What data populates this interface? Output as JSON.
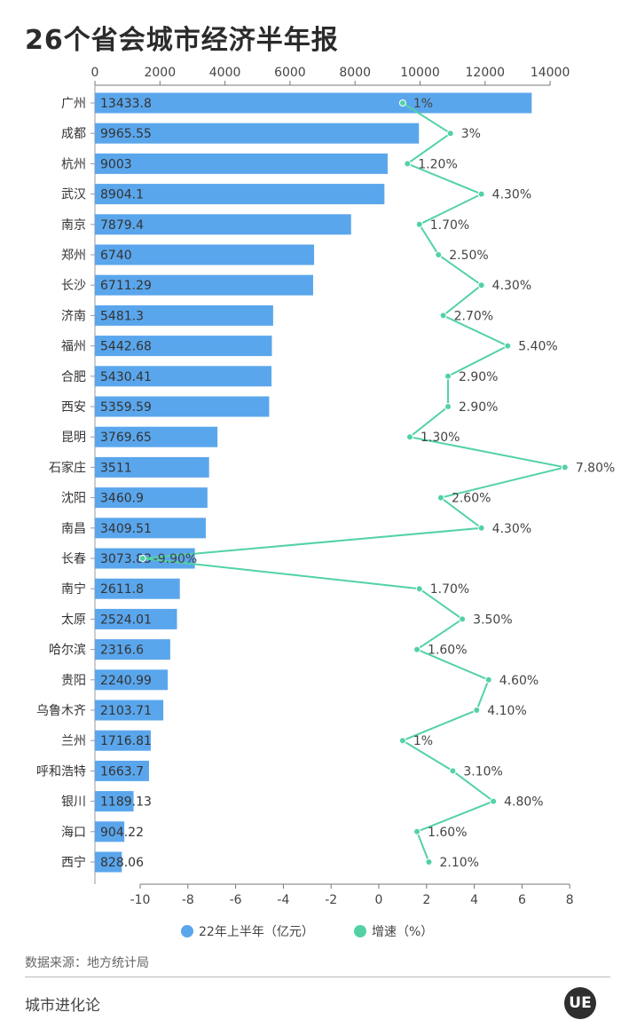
{
  "title": "26个省会城市经济半年报",
  "source": "数据来源：地方统计局",
  "footer": "城市进化论",
  "logo_text": "UE",
  "colors": {
    "bar": "#5aa6ec",
    "line": "#52d2a4"
  },
  "chart_data": {
    "type": "bar",
    "orientation": "horizontal",
    "categories": [
      "广州",
      "成都",
      "杭州",
      "武汉",
      "南京",
      "郑州",
      "长沙",
      "济南",
      "福州",
      "合肥",
      "西安",
      "昆明",
      "石家庄",
      "沈阳",
      "南昌",
      "长春",
      "南宁",
      "太原",
      "哈尔滨",
      "贵阳",
      "乌鲁木齐",
      "兰州",
      "呼和浩特",
      "银川",
      "海口",
      "西宁"
    ],
    "series": [
      {
        "name": "22年上半年（亿元）",
        "type": "bar",
        "axis": "top",
        "values": [
          13433.8,
          9965.55,
          9003,
          8904.1,
          7879.4,
          6740,
          6711.29,
          5481.3,
          5442.68,
          5430.41,
          5359.59,
          3769.65,
          3511,
          3460.9,
          3409.51,
          3073.83,
          2611.8,
          2524.01,
          2316.6,
          2240.99,
          2103.71,
          1716.81,
          1663.7,
          1189.13,
          904.22,
          828.06
        ],
        "labels": [
          "13433.8",
          "9965.55",
          "9003",
          "8904.1",
          "7879.4",
          "6740",
          "6711.29",
          "5481.3",
          "5442.68",
          "5430.41",
          "5359.59",
          "3769.65",
          "3511",
          "3460.9",
          "3409.51",
          "3073.83",
          "2611.8",
          "2524.01",
          "2316.6",
          "2240.99",
          "2103.71",
          "1716.81",
          "1663.7",
          "1189.13",
          "904.22",
          "828.06"
        ]
      },
      {
        "name": "增速（%）",
        "type": "line",
        "axis": "bottom",
        "values": [
          1,
          3,
          1.2,
          4.3,
          1.7,
          2.5,
          4.3,
          2.7,
          5.4,
          2.9,
          2.9,
          1.3,
          7.8,
          2.6,
          4.3,
          -9.9,
          1.7,
          3.5,
          1.6,
          4.6,
          4.1,
          1,
          3.1,
          4.8,
          1.6,
          2.1
        ],
        "labels": [
          "1%",
          "3%",
          "1.20%",
          "4.30%",
          "1.70%",
          "2.50%",
          "4.30%",
          "2.70%",
          "5.40%",
          "2.90%",
          "2.90%",
          "1.30%",
          "7.80%",
          "2.60%",
          "4.30%",
          "-9.90%",
          "1.70%",
          "3.50%",
          "1.60%",
          "4.60%",
          "4.10%",
          "1%",
          "3.10%",
          "4.80%",
          "1.60%",
          "2.10%"
        ]
      }
    ],
    "top_axis": {
      "range": [
        0,
        14000
      ],
      "ticks": [
        0,
        2000,
        4000,
        6000,
        8000,
        10000,
        12000,
        14000
      ]
    },
    "bottom_axis": {
      "range": [
        -10,
        8
      ],
      "ticks": [
        -10,
        -8,
        -6,
        -4,
        -2,
        0,
        2,
        4,
        6,
        8
      ]
    },
    "grid": false,
    "legend_position": "bottom"
  }
}
